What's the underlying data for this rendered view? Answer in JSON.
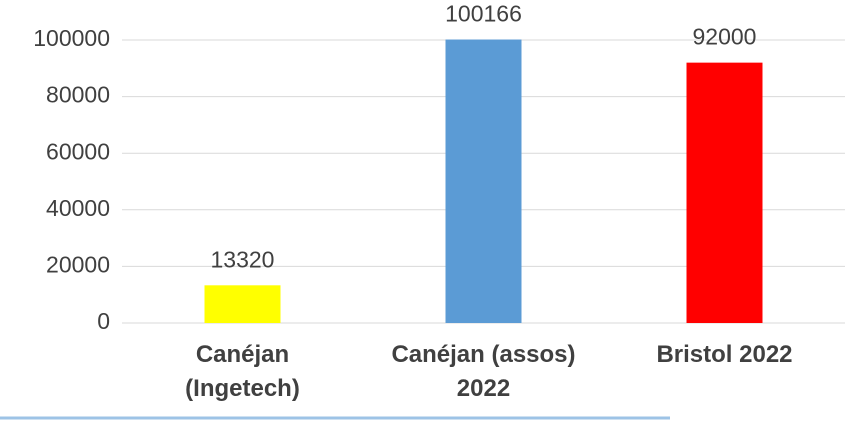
{
  "chart_data": {
    "type": "bar",
    "categories": [
      "Canéjan (Ingetech)",
      "Canéjan (assos) 2022",
      "Bristol 2022"
    ],
    "values": [
      13320,
      100166,
      92000
    ],
    "colors": [
      "#ffff00",
      "#5b9bd5",
      "#ff0000"
    ],
    "ylim": [
      0,
      100000
    ],
    "yticks": [
      0,
      20000,
      40000,
      60000,
      80000,
      100000
    ],
    "grid": true
  }
}
